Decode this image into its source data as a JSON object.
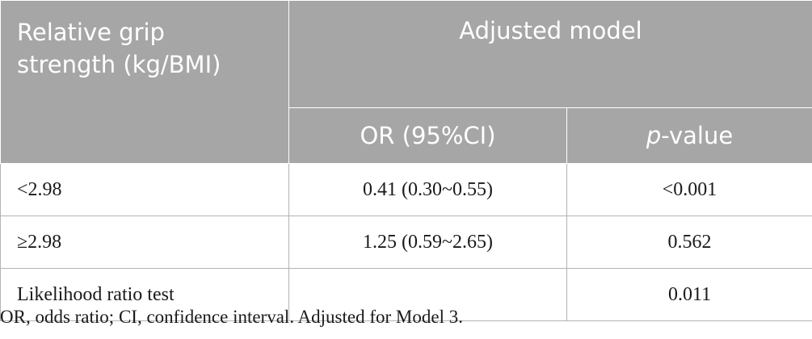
{
  "table": {
    "header": {
      "col1_line1": "Relative grip",
      "col1_line2": "strength (kg/BMI)",
      "group": "Adjusted model",
      "or_label": "OR (95%CI)",
      "p_italic": "p",
      "p_rest": "-value"
    },
    "rows": [
      {
        "label": "<2.98",
        "or": "0.41 (0.30~0.55)",
        "p": "<0.001"
      },
      {
        "label": "≥2.98",
        "or": "1.25 (0.59~2.65)",
        "p": "0.562"
      },
      {
        "label": "Likelihood ratio test",
        "or": "",
        "p": "0.011"
      }
    ]
  },
  "footnote": "OR, odds ratio; CI, confidence interval. Adjusted for Model 3."
}
